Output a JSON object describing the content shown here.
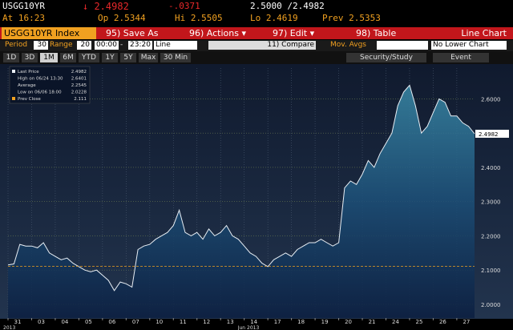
{
  "quote": {
    "ticker": "USGG10YR",
    "last": "↓ 2.4982",
    "change": "-.0371",
    "bid_ask": "2.5000 /2.4982",
    "time": "At 16:23",
    "open": "Op 2.5344",
    "high": "Hi 2.5505",
    "low": "Lo 2.4619",
    "prev": "Prev 2.5353"
  },
  "toolbar": {
    "security": "USGG10YR Index",
    "buttons": [
      "95) Save As",
      "96) Actions ▾",
      "97) Edit ▾",
      "98) Table"
    ],
    "view": "Line Chart"
  },
  "settings": {
    "period_label": "Period",
    "period": "30",
    "range_label": "Range",
    "range": "20",
    "start": "00:00",
    "dash": "-",
    "end": "23:20",
    "style": "Line",
    "compare": "11) Compare",
    "mov_avgs": "Mov. Avgs",
    "lower": "No Lower Chart"
  },
  "tabs": [
    "1D",
    "3D",
    "1M",
    "6M",
    "YTD",
    "1Y",
    "5Y",
    "Max",
    "30 Min"
  ],
  "active_tab": 2,
  "study": "Security/Study",
  "event": "Event",
  "chart_data": {
    "type": "line",
    "x_title": "Jun 2013",
    "x_year": "2013",
    "categories": [
      "31",
      null,
      null,
      null,
      "03",
      null,
      null,
      null,
      "04",
      null,
      null,
      null,
      "05",
      null,
      null,
      null,
      "06",
      null,
      null,
      null,
      "07",
      null,
      null,
      null,
      "10",
      null,
      null,
      null,
      "11",
      null,
      null,
      null,
      "12",
      null,
      null,
      null,
      "13",
      null,
      null,
      null,
      "14",
      null,
      null,
      null,
      "17",
      null,
      null,
      null,
      "18",
      null,
      null,
      null,
      "19",
      null,
      null,
      null,
      "20",
      null,
      null,
      null,
      "21",
      null,
      null,
      null,
      "24",
      null,
      null,
      null,
      "25",
      null,
      null,
      null,
      "26",
      null,
      null,
      null,
      "27",
      null,
      null,
      null
    ],
    "series": [
      {
        "name": "Last Price",
        "color": "#e8eef4",
        "values": [
          2.115,
          2.118,
          2.175,
          2.17,
          2.17,
          2.165,
          2.18,
          2.15,
          2.14,
          2.13,
          2.135,
          2.12,
          2.11,
          2.1,
          2.095,
          2.1,
          2.085,
          2.07,
          2.04,
          2.065,
          2.06,
          2.05,
          2.16,
          2.17,
          2.175,
          2.19,
          2.2,
          2.21,
          2.23,
          2.275,
          2.21,
          2.2,
          2.21,
          2.19,
          2.22,
          2.2,
          2.21,
          2.23,
          2.2,
          2.19,
          2.17,
          2.15,
          2.14,
          2.12,
          2.11,
          2.13,
          2.14,
          2.15,
          2.14,
          2.16,
          2.17,
          2.18,
          2.18,
          2.19,
          2.18,
          2.17,
          2.18,
          2.34,
          2.36,
          2.35,
          2.38,
          2.42,
          2.4,
          2.44,
          2.47,
          2.5,
          2.58,
          2.62,
          2.64,
          2.58,
          2.5,
          2.52,
          2.56,
          2.6,
          2.59,
          2.55,
          2.55,
          2.53,
          2.52,
          2.4982
        ]
      }
    ],
    "legend_entries": [
      {
        "label": "Last Price",
        "value": 2.4982
      },
      {
        "label": "High on 06/24 13:30",
        "value": 2.6401
      },
      {
        "label": "Average",
        "value": 2.2545
      },
      {
        "label": "Low on 06/06 18:00",
        "value": 2.0228
      },
      {
        "label": "Prev Close",
        "value": 2.111
      }
    ],
    "ylim": [
      1.96,
      2.69
    ],
    "yticks": [
      {
        "value": 2,
        "label": "2.0000"
      },
      {
        "value": 2.1,
        "label": "2.1000"
      },
      {
        "value": 2.2,
        "label": "2.2000"
      },
      {
        "value": 2.3,
        "label": "2.3000"
      },
      {
        "value": 2.4,
        "label": "2.4000"
      },
      {
        "value": 2.5,
        "label": "2.5000"
      },
      {
        "value": 2.6,
        "label": "2.6000"
      }
    ],
    "grid": true
  }
}
